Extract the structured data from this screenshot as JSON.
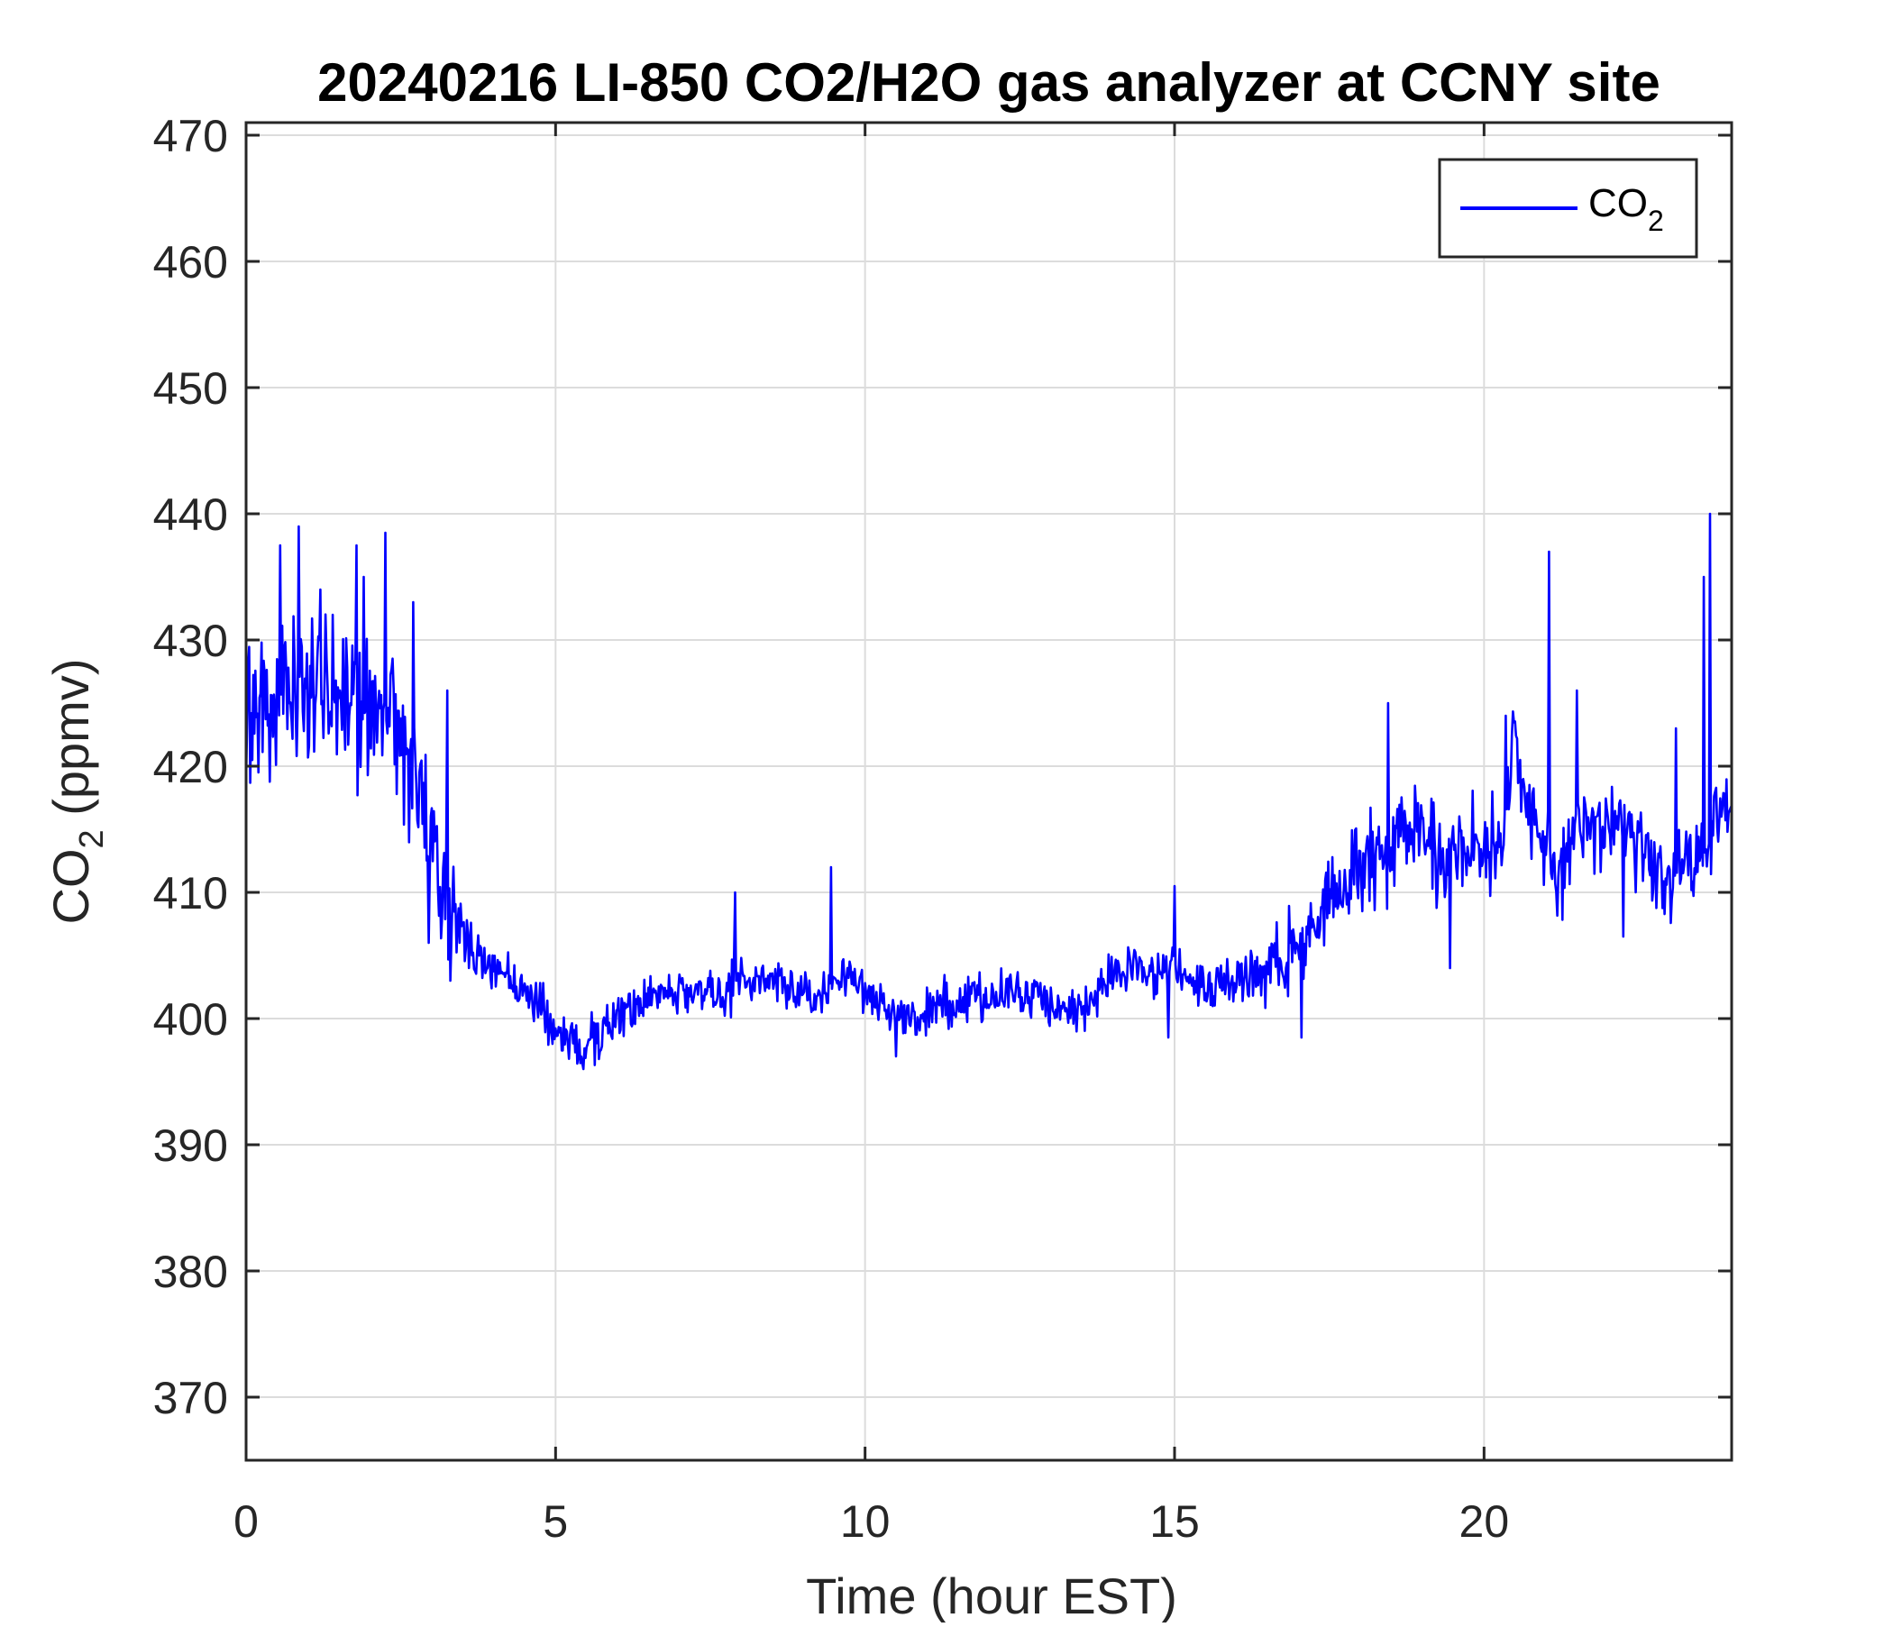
{
  "chart_data": {
    "type": "line",
    "title": "20240216 LI-850 CO2/H2O gas analyzer at CCNY site",
    "xlabel": "Time (hour EST)",
    "ylabel": {
      "base": "CO",
      "sub": "2",
      "rest": " (ppmv)"
    },
    "xlim": [
      0,
      24
    ],
    "ylim": [
      365,
      471
    ],
    "xticks": [
      0,
      5,
      10,
      15,
      20
    ],
    "yticks": [
      370,
      380,
      390,
      400,
      410,
      420,
      430,
      440,
      450,
      460,
      470
    ],
    "grid": true,
    "legend_position": "top-right",
    "series": [
      {
        "name": {
          "base": "CO",
          "sub": "2"
        },
        "color": "#0000ff",
        "x": [
          0.0,
          0.25,
          0.5,
          0.75,
          1.0,
          1.25,
          1.5,
          1.75,
          2.0,
          2.25,
          2.5,
          2.75,
          3.0,
          3.25,
          3.5,
          3.75,
          4.0,
          4.25,
          4.5,
          4.75,
          5.0,
          5.25,
          5.5,
          5.75,
          6.0,
          6.25,
          6.5,
          6.75,
          7.0,
          7.25,
          7.5,
          7.75,
          8.0,
          8.25,
          8.5,
          8.75,
          9.0,
          9.25,
          9.5,
          9.75,
          10.0,
          10.25,
          10.5,
          10.75,
          11.0,
          11.25,
          11.5,
          11.75,
          12.0,
          12.25,
          12.5,
          12.75,
          13.0,
          13.25,
          13.5,
          13.75,
          14.0,
          14.25,
          14.5,
          14.75,
          15.0,
          15.25,
          15.5,
          15.75,
          16.0,
          16.25,
          16.5,
          16.75,
          17.0,
          17.25,
          17.5,
          17.75,
          18.0,
          18.25,
          18.5,
          18.75,
          19.0,
          19.25,
          19.5,
          19.75,
          20.0,
          20.25,
          20.5,
          20.75,
          21.0,
          21.25,
          21.5,
          21.75,
          22.0,
          22.25,
          22.5,
          22.75,
          23.0,
          23.25,
          23.5,
          23.75,
          24.0
        ],
        "y": [
          424,
          425,
          426,
          427,
          426,
          427,
          426,
          426,
          425,
          424,
          422,
          419,
          414,
          410,
          407,
          405,
          404,
          403,
          402,
          401,
          399,
          398,
          398,
          399,
          400,
          401,
          402,
          402,
          402,
          402,
          402,
          402,
          403,
          403,
          403,
          403,
          402,
          402,
          403,
          403,
          402,
          401,
          400,
          400,
          401,
          401,
          401,
          402,
          401,
          402,
          402,
          402,
          401,
          401,
          401,
          402,
          403,
          404,
          404,
          403,
          404,
          403,
          403,
          403,
          403,
          404,
          404,
          405,
          406,
          408,
          410,
          411,
          412,
          413,
          414,
          415,
          415,
          413,
          412,
          413,
          413,
          413,
          422,
          416,
          413,
          411,
          416,
          415,
          415,
          415,
          414,
          412,
          411,
          412,
          413,
          415,
          417
        ]
      }
    ],
    "noise": {
      "amplitude": [
        4.5,
        4.5,
        4.5,
        4.5,
        4.5,
        4.5,
        4.5,
        4.5,
        4.5,
        4.5,
        4.5,
        4.5,
        3.8,
        3.4,
        2.0,
        1.6,
        1.4,
        1.4,
        1.4,
        1.4,
        1.4,
        1.4,
        1.4,
        1.4,
        1.4,
        1.4,
        1.4,
        1.4,
        1.4,
        1.4,
        1.4,
        1.4,
        1.4,
        1.4,
        1.4,
        1.4,
        1.4,
        1.4,
        1.4,
        1.4,
        1.4,
        1.4,
        1.4,
        1.4,
        1.4,
        1.4,
        1.4,
        1.4,
        1.4,
        1.4,
        1.4,
        1.4,
        1.4,
        1.4,
        1.4,
        1.4,
        1.6,
        1.6,
        1.6,
        1.6,
        1.6,
        1.6,
        1.6,
        1.6,
        1.6,
        1.8,
        2.0,
        2.2,
        2.6,
        2.8,
        3.0,
        3.0,
        3.0,
        3.0,
        3.0,
        3.0,
        3.0,
        3.0,
        3.0,
        3.0,
        3.0,
        2.4,
        2.4,
        2.4,
        2.4,
        2.4,
        2.4,
        2.4,
        2.4,
        2.4,
        2.4,
        2.4,
        2.4,
        2.4,
        2.4,
        2.4,
        2.4
      ],
      "spikes": [
        {
          "x": 0.55,
          "y": 437.5
        },
        {
          "x": 0.85,
          "y": 439
        },
        {
          "x": 1.2,
          "y": 434
        },
        {
          "x": 1.78,
          "y": 437.5
        },
        {
          "x": 1.9,
          "y": 435
        },
        {
          "x": 2.25,
          "y": 438.5
        },
        {
          "x": 2.7,
          "y": 433
        },
        {
          "x": 2.95,
          "y": 406
        },
        {
          "x": 3.25,
          "y": 426
        },
        {
          "x": 3.3,
          "y": 403
        },
        {
          "x": 5.45,
          "y": 396
        },
        {
          "x": 7.9,
          "y": 410
        },
        {
          "x": 9.45,
          "y": 412
        },
        {
          "x": 10.5,
          "y": 397
        },
        {
          "x": 14.9,
          "y": 398.5
        },
        {
          "x": 15.0,
          "y": 410.5
        },
        {
          "x": 17.05,
          "y": 398.5
        },
        {
          "x": 18.45,
          "y": 425
        },
        {
          "x": 19.45,
          "y": 404
        },
        {
          "x": 20.35,
          "y": 424
        },
        {
          "x": 21.05,
          "y": 437
        },
        {
          "x": 21.5,
          "y": 426
        },
        {
          "x": 22.25,
          "y": 406.5
        },
        {
          "x": 23.1,
          "y": 423
        },
        {
          "x": 23.55,
          "y": 435
        },
        {
          "x": 23.65,
          "y": 440
        },
        {
          "x": 23.7,
          "y": 414.5
        }
      ]
    }
  }
}
